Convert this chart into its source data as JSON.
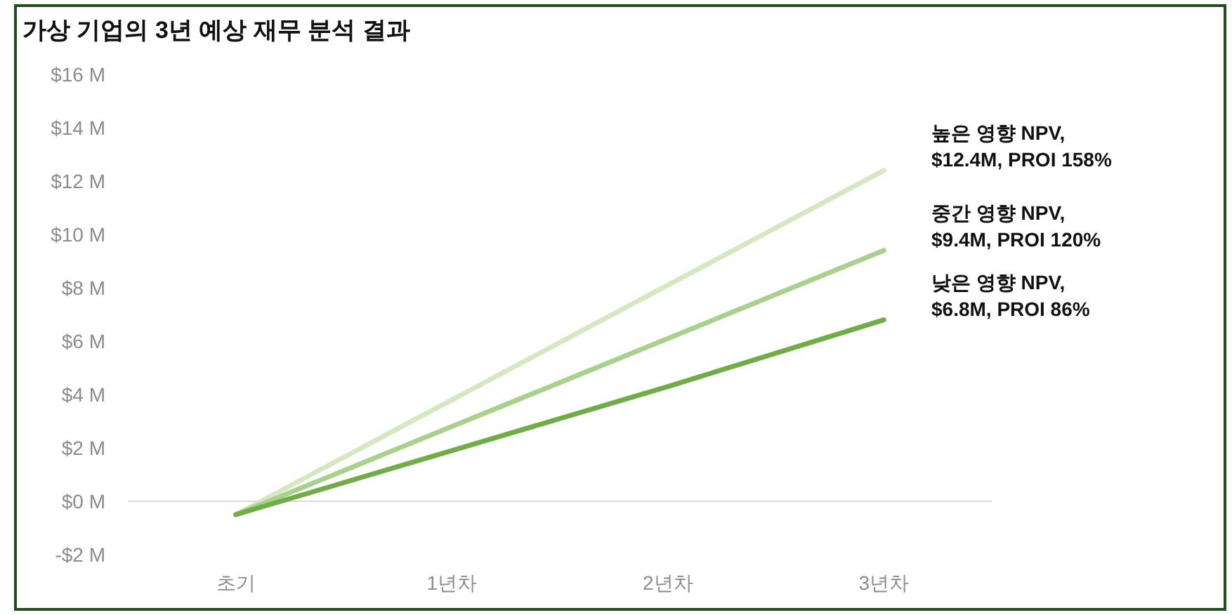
{
  "chart_data": {
    "type": "line",
    "title": "가상 기업의 3년 예상 재무 분석 결과",
    "categories": [
      "초기",
      "1년차",
      "2년차",
      "3년차"
    ],
    "series": [
      {
        "name": "높은 영향 NPV, $12.4M, PROI 158%",
        "color": "#d5e8c0",
        "values": [
          -0.5,
          3.8,
          8.1,
          12.4
        ]
      },
      {
        "name": "중간 영향 NPV, $9.4M, PROI 120%",
        "color": "#a9d18e",
        "values": [
          -0.5,
          2.8,
          6.1,
          9.4
        ]
      },
      {
        "name": "낮은 영향 NPV, $6.8M, PROI 86%",
        "color": "#70ad47",
        "values": [
          -0.5,
          1.9,
          4.3,
          6.8
        ]
      }
    ],
    "ylim": [
      -2,
      16
    ],
    "yticks": [
      {
        "value": -2,
        "label": "-$2 M"
      },
      {
        "value": 0,
        "label": "$0 M"
      },
      {
        "value": 2,
        "label": "$2 M"
      },
      {
        "value": 4,
        "label": "$4 M"
      },
      {
        "value": 6,
        "label": "$6 M"
      },
      {
        "value": 8,
        "label": "$8 M"
      },
      {
        "value": 10,
        "label": "$10 M"
      },
      {
        "value": 12,
        "label": "$12 M"
      },
      {
        "value": 14,
        "label": "$14 M"
      },
      {
        "value": 16,
        "label": "$16 M"
      }
    ],
    "marker": "none",
    "line_style": "solid",
    "legend": false
  }
}
